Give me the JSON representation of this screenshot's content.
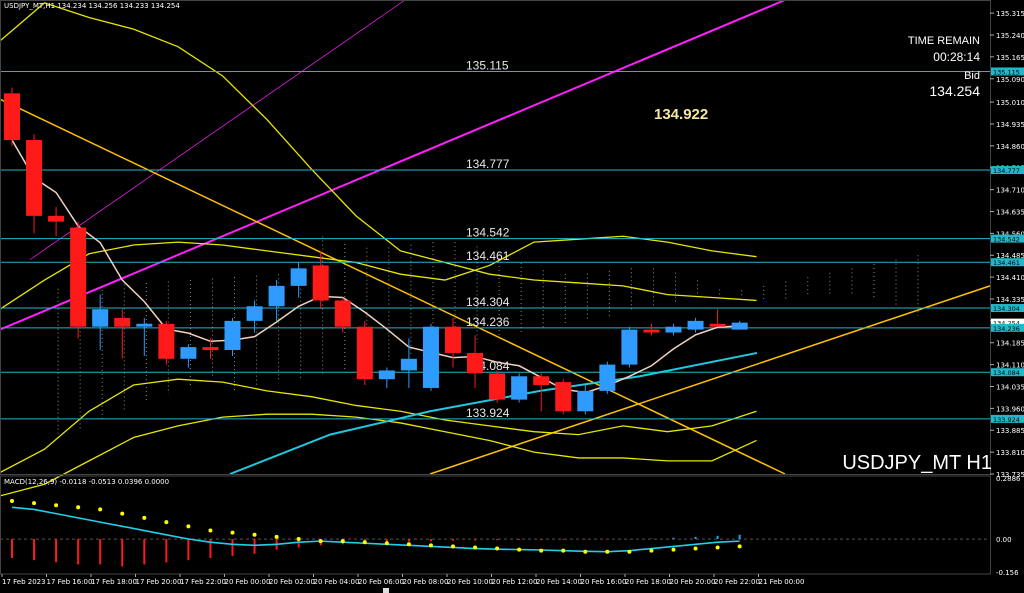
{
  "header": {
    "symbol_info": "USDJPY_MT,H1  134.234 134.256 134.233 134.254",
    "time_remain_label": "TIME REMAIN",
    "time_remain_value": "00:28:14",
    "bid_label": "Bid",
    "bid_value": "134.254",
    "highlight_price": "134.922",
    "symbol_timeframe": "USDJPY_MT H1"
  },
  "macd": {
    "title": "MACD(12,26,9) -0.0118 -0.0513 0.0396 0.0000",
    "axis_ticks": [
      0.2886,
      0.0,
      -0.156
    ],
    "axis_tick_labels": [
      "0.2886",
      "0.00",
      "-0.156"
    ],
    "histogram": [
      -0.09,
      -0.1,
      -0.11,
      -0.12,
      -0.12,
      -0.13,
      -0.12,
      -0.11,
      -0.1,
      -0.09,
      -0.08,
      -0.07,
      -0.05,
      -0.04,
      -0.03,
      -0.025,
      -0.02,
      -0.015,
      -0.012,
      -0.01,
      -0.008,
      -0.006,
      -0.005,
      -0.004,
      -0.004,
      -0.003,
      -0.002,
      -0.002,
      -0.001,
      0.002,
      0.006,
      0.01,
      0.015,
      0.02
    ],
    "signal": [
      0.18,
      0.17,
      0.16,
      0.15,
      0.14,
      0.12,
      0.1,
      0.08,
      0.06,
      0.04,
      0.03,
      0.02,
      0.01,
      0.0,
      -0.01,
      -0.01,
      -0.015,
      -0.02,
      -0.025,
      -0.03,
      -0.035,
      -0.04,
      -0.045,
      -0.05,
      -0.055,
      -0.055,
      -0.06,
      -0.06,
      -0.06,
      -0.055,
      -0.05,
      -0.045,
      -0.04,
      -0.035
    ],
    "macd_line": [
      0.15,
      0.14,
      0.12,
      0.1,
      0.08,
      0.06,
      0.04,
      0.02,
      0.0,
      -0.015,
      -0.025,
      -0.03,
      -0.025,
      -0.015,
      -0.01,
      -0.015,
      -0.02,
      -0.025,
      -0.03,
      -0.035,
      -0.04,
      -0.045,
      -0.048,
      -0.05,
      -0.052,
      -0.055,
      -0.058,
      -0.06,
      -0.055,
      -0.045,
      -0.035,
      -0.025,
      -0.015,
      -0.01
    ]
  },
  "chart_data": {
    "type": "candlestick",
    "symbol": "USDJPY_MT",
    "timeframe": "H1",
    "ylim": [
      133.735,
      135.36
    ],
    "y_ticks": [
      135.315,
      135.24,
      135.165,
      135.09,
      135.01,
      134.935,
      134.86,
      134.785,
      134.71,
      134.635,
      134.56,
      134.485,
      134.41,
      134.335,
      134.26,
      134.185,
      134.11,
      134.035,
      133.96,
      133.885,
      133.81,
      133.735
    ],
    "y_tick_labels": [
      "135.315",
      "135.240",
      "135.165",
      "135.090",
      "135.010",
      "134.935",
      "134.860",
      "134.785",
      "134.710",
      "134.635",
      "134.560",
      "134.485",
      "134.410",
      "134.335",
      "134.260",
      "134.185",
      "134.110",
      "134.035",
      "133.960",
      "133.885",
      "133.810",
      "133.735"
    ],
    "x_tick_labels": [
      "17 Feb 2023",
      "17 Feb 16:00",
      "17 Feb 18:00",
      "17 Feb 20:00",
      "17 Feb 22:00",
      "20 Feb 00:00",
      "20 Feb 02:00",
      "20 Feb 04:00",
      "20 Feb 06:00",
      "20 Feb 08:00",
      "20 Feb 10:00",
      "20 Feb 12:00",
      "20 Feb 14:00",
      "20 Feb 16:00",
      "20 Feb 18:00",
      "20 Feb 20:00",
      "20 Feb 22:00",
      "21 Feb 00:00"
    ],
    "levels": [
      {
        "value": 135.115,
        "label": "135.115"
      },
      {
        "value": 134.777,
        "label": "134.777"
      },
      {
        "value": 134.542,
        "label": "134.542"
      },
      {
        "value": 134.461,
        "label": "134.461"
      },
      {
        "value": 134.304,
        "label": "134.304"
      },
      {
        "value": 134.236,
        "label": "134.236"
      },
      {
        "value": 134.084,
        "label": "134.084"
      },
      {
        "value": 133.924,
        "label": "133.924"
      }
    ],
    "price_tags": [
      "135.115",
      "134.777",
      "134.542",
      "134.461",
      "134.304",
      "134.254",
      "134.236",
      "134.084",
      "133.924"
    ],
    "candles": [
      {
        "o": 135.04,
        "h": 135.06,
        "l": 134.86,
        "c": 134.88
      },
      {
        "o": 134.88,
        "h": 134.9,
        "l": 134.56,
        "c": 134.62
      },
      {
        "o": 134.62,
        "h": 134.65,
        "l": 134.55,
        "c": 134.6
      },
      {
        "o": 134.58,
        "h": 134.6,
        "l": 134.2,
        "c": 134.24
      },
      {
        "o": 134.24,
        "h": 134.35,
        "l": 134.16,
        "c": 134.3
      },
      {
        "o": 134.27,
        "h": 134.3,
        "l": 134.13,
        "c": 134.24
      },
      {
        "o": 134.24,
        "h": 134.27,
        "l": 134.14,
        "c": 134.25
      },
      {
        "o": 134.25,
        "h": 134.26,
        "l": 134.11,
        "c": 134.13
      },
      {
        "o": 134.13,
        "h": 134.18,
        "l": 134.1,
        "c": 134.17
      },
      {
        "o": 134.17,
        "h": 134.2,
        "l": 134.13,
        "c": 134.16
      },
      {
        "o": 134.16,
        "h": 134.27,
        "l": 134.14,
        "c": 134.26
      },
      {
        "o": 134.26,
        "h": 134.33,
        "l": 134.22,
        "c": 134.31
      },
      {
        "o": 134.31,
        "h": 134.4,
        "l": 134.26,
        "c": 134.38
      },
      {
        "o": 134.38,
        "h": 134.46,
        "l": 134.34,
        "c": 134.44
      },
      {
        "o": 134.45,
        "h": 134.5,
        "l": 134.3,
        "c": 134.33
      },
      {
        "o": 134.33,
        "h": 134.34,
        "l": 134.22,
        "c": 134.24
      },
      {
        "o": 134.24,
        "h": 134.26,
        "l": 134.04,
        "c": 134.06
      },
      {
        "o": 134.06,
        "h": 134.1,
        "l": 134.03,
        "c": 134.09
      },
      {
        "o": 134.09,
        "h": 134.2,
        "l": 134.03,
        "c": 134.13
      },
      {
        "o": 134.03,
        "h": 134.25,
        "l": 134.02,
        "c": 134.24
      },
      {
        "o": 134.24,
        "h": 134.27,
        "l": 134.1,
        "c": 134.15
      },
      {
        "o": 134.15,
        "h": 134.21,
        "l": 134.03,
        "c": 134.08
      },
      {
        "o": 134.08,
        "h": 134.09,
        "l": 133.98,
        "c": 133.99
      },
      {
        "o": 133.99,
        "h": 134.08,
        "l": 133.98,
        "c": 134.07
      },
      {
        "o": 134.07,
        "h": 134.08,
        "l": 133.95,
        "c": 134.04
      },
      {
        "o": 134.05,
        "h": 134.06,
        "l": 133.94,
        "c": 133.95
      },
      {
        "o": 133.95,
        "h": 134.04,
        "l": 133.94,
        "c": 134.02
      },
      {
        "o": 134.02,
        "h": 134.12,
        "l": 134.01,
        "c": 134.11
      },
      {
        "o": 134.11,
        "h": 134.24,
        "l": 134.1,
        "c": 134.23
      },
      {
        "o": 134.23,
        "h": 134.25,
        "l": 134.21,
        "c": 134.22
      },
      {
        "o": 134.22,
        "h": 134.25,
        "l": 134.21,
        "c": 134.24
      },
      {
        "o": 134.23,
        "h": 134.27,
        "l": 134.22,
        "c": 134.26
      },
      {
        "o": 134.25,
        "h": 134.3,
        "l": 134.24,
        "c": 134.24
      },
      {
        "o": 134.23,
        "h": 134.26,
        "l": 134.23,
        "c": 134.254
      }
    ],
    "colors": {
      "background": "#000000",
      "bull": "#2f9bff",
      "bear": "#ff1a1a",
      "level": "#1fb8c8",
      "trend_magenta": "#ff20ff",
      "trend_gold": "#ffc000",
      "band_yellow": "#e6e600",
      "ma_cyan": "#20c8e0",
      "ma_white": "#f0d0c0",
      "macd_signal": "#ffff00",
      "macd_line": "#20d0e8",
      "axis_text": "#ffffff",
      "cloud": "#8c8c8c"
    }
  }
}
